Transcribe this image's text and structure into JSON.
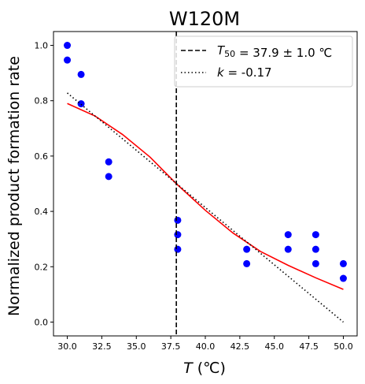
{
  "chart_data": {
    "type": "scatter",
    "title": "W120M",
    "xlabel": {
      "italic": "T",
      "rest": " (℃)"
    },
    "ylabel": "Normalized product formation rate",
    "xlim": [
      29.0,
      51.0
    ],
    "ylim": [
      -0.05,
      1.05
    ],
    "xticks": [
      30.0,
      32.5,
      35.0,
      37.5,
      40.0,
      42.5,
      45.0,
      47.5,
      50.0
    ],
    "xtick_labels": [
      "30.0",
      "32.5",
      "35.0",
      "37.5",
      "40.0",
      "42.5",
      "45.0",
      "47.5",
      "50.0"
    ],
    "yticks": [
      0.0,
      0.2,
      0.4,
      0.6,
      0.8,
      1.0
    ],
    "ytick_labels": [
      "0.0",
      "0.2",
      "0.4",
      "0.6",
      "0.8",
      "1.0"
    ],
    "grid": false,
    "legend_position": "top-right",
    "series": [
      {
        "kind": "points",
        "color": "#0000ff",
        "x": [
          30,
          30,
          31,
          31,
          33,
          33,
          38,
          38,
          38,
          43,
          43,
          46,
          46,
          48,
          48,
          48,
          50,
          50
        ],
        "y": [
          1.0,
          0.947,
          0.895,
          0.789,
          0.579,
          0.526,
          0.368,
          0.316,
          0.263,
          0.263,
          0.211,
          0.316,
          0.263,
          0.316,
          0.263,
          0.211,
          0.211,
          0.158
        ]
      },
      {
        "kind": "fit-curve",
        "color": "#ff0000",
        "x": [
          30,
          32,
          34,
          36,
          37.9,
          40,
          42,
          44,
          46,
          48,
          50
        ],
        "y": [
          0.79,
          0.745,
          0.678,
          0.596,
          0.5,
          0.404,
          0.322,
          0.255,
          0.205,
          0.16,
          0.118
        ]
      },
      {
        "name": "k = -0.17",
        "kind": "tangent-line",
        "color": "#000000",
        "x": [
          30,
          50
        ],
        "y": [
          0.828,
          0.0
        ]
      },
      {
        "name": "T50 = 37.9 ± 1.0 ℃",
        "kind": "vertical-line",
        "color": "#000000",
        "x": [
          37.9,
          37.9
        ],
        "y": [
          -0.05,
          1.05
        ]
      }
    ],
    "legend": [
      {
        "style": "dashed",
        "parts": [
          {
            "text": "T",
            "italic": true
          },
          {
            "text": "50",
            "sub": true
          },
          {
            "text": " = 37.9 ± 1.0 ℃"
          }
        ]
      },
      {
        "style": "dotted",
        "parts": [
          {
            "text": "k",
            "italic": true
          },
          {
            "text": " = -0.17"
          }
        ]
      }
    ]
  }
}
